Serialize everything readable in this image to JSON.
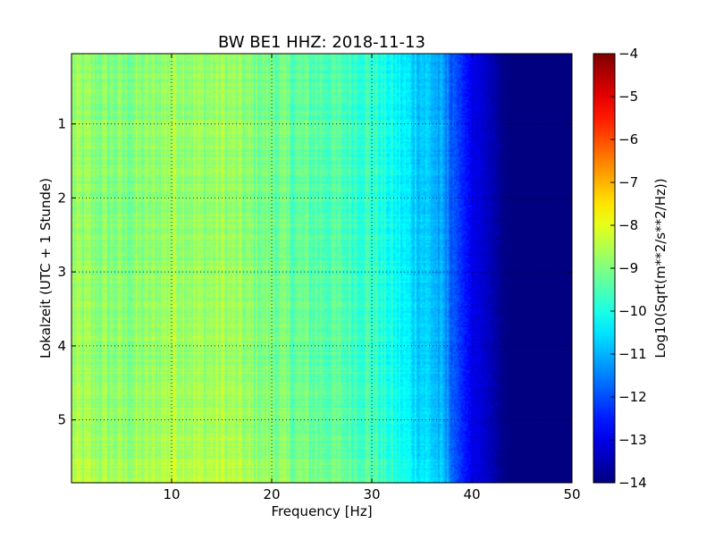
{
  "chart_data": {
    "type": "heatmap",
    "title": "BW BE1 HHZ: 2018-11-13",
    "xlabel": "Frequency [Hz]",
    "ylabel": "Lokalzeit (UTC + 1 Stunde)",
    "xlim": [
      0,
      50
    ],
    "ylim": [
      5.85,
      0.05
    ],
    "y_inverted": true,
    "xticks": [
      10,
      20,
      30,
      40,
      50
    ],
    "yticks": [
      1,
      2,
      3,
      4,
      5
    ],
    "grid": true,
    "colormap": "jet",
    "colorbar": {
      "label": "Log10(Sqrt(m**2/s**2/Hz))",
      "range": [
        -14,
        -4
      ],
      "ticks": [
        -4,
        -5,
        -6,
        -7,
        -8,
        -9,
        -10,
        -11,
        -12,
        -13,
        -14
      ]
    },
    "frequency_profile": {
      "frequency_hz": [
        0,
        2,
        5,
        8,
        10,
        13,
        15,
        18,
        20,
        22,
        25,
        28,
        30,
        31,
        32,
        33,
        34,
        35,
        36,
        37,
        38,
        39,
        40,
        41,
        42,
        43,
        44,
        50
      ],
      "typical_value": [
        -8.8,
        -8.9,
        -9.0,
        -8.9,
        -8.6,
        -8.8,
        -8.7,
        -9.0,
        -9.1,
        -9.3,
        -9.4,
        -9.6,
        -9.7,
        -10.0,
        -10.2,
        -10.4,
        -10.6,
        -10.7,
        -10.9,
        -11.3,
        -11.8,
        -12.4,
        -12.9,
        -13.2,
        -13.5,
        -13.9,
        -14.0,
        -14.0
      ]
    },
    "time_trend": {
      "hours": [
        0.05,
        1,
        2,
        3,
        4,
        5,
        5.85
      ],
      "offset": [
        -0.05,
        0.0,
        0.0,
        0.05,
        0.05,
        0.15,
        0.35
      ]
    }
  }
}
